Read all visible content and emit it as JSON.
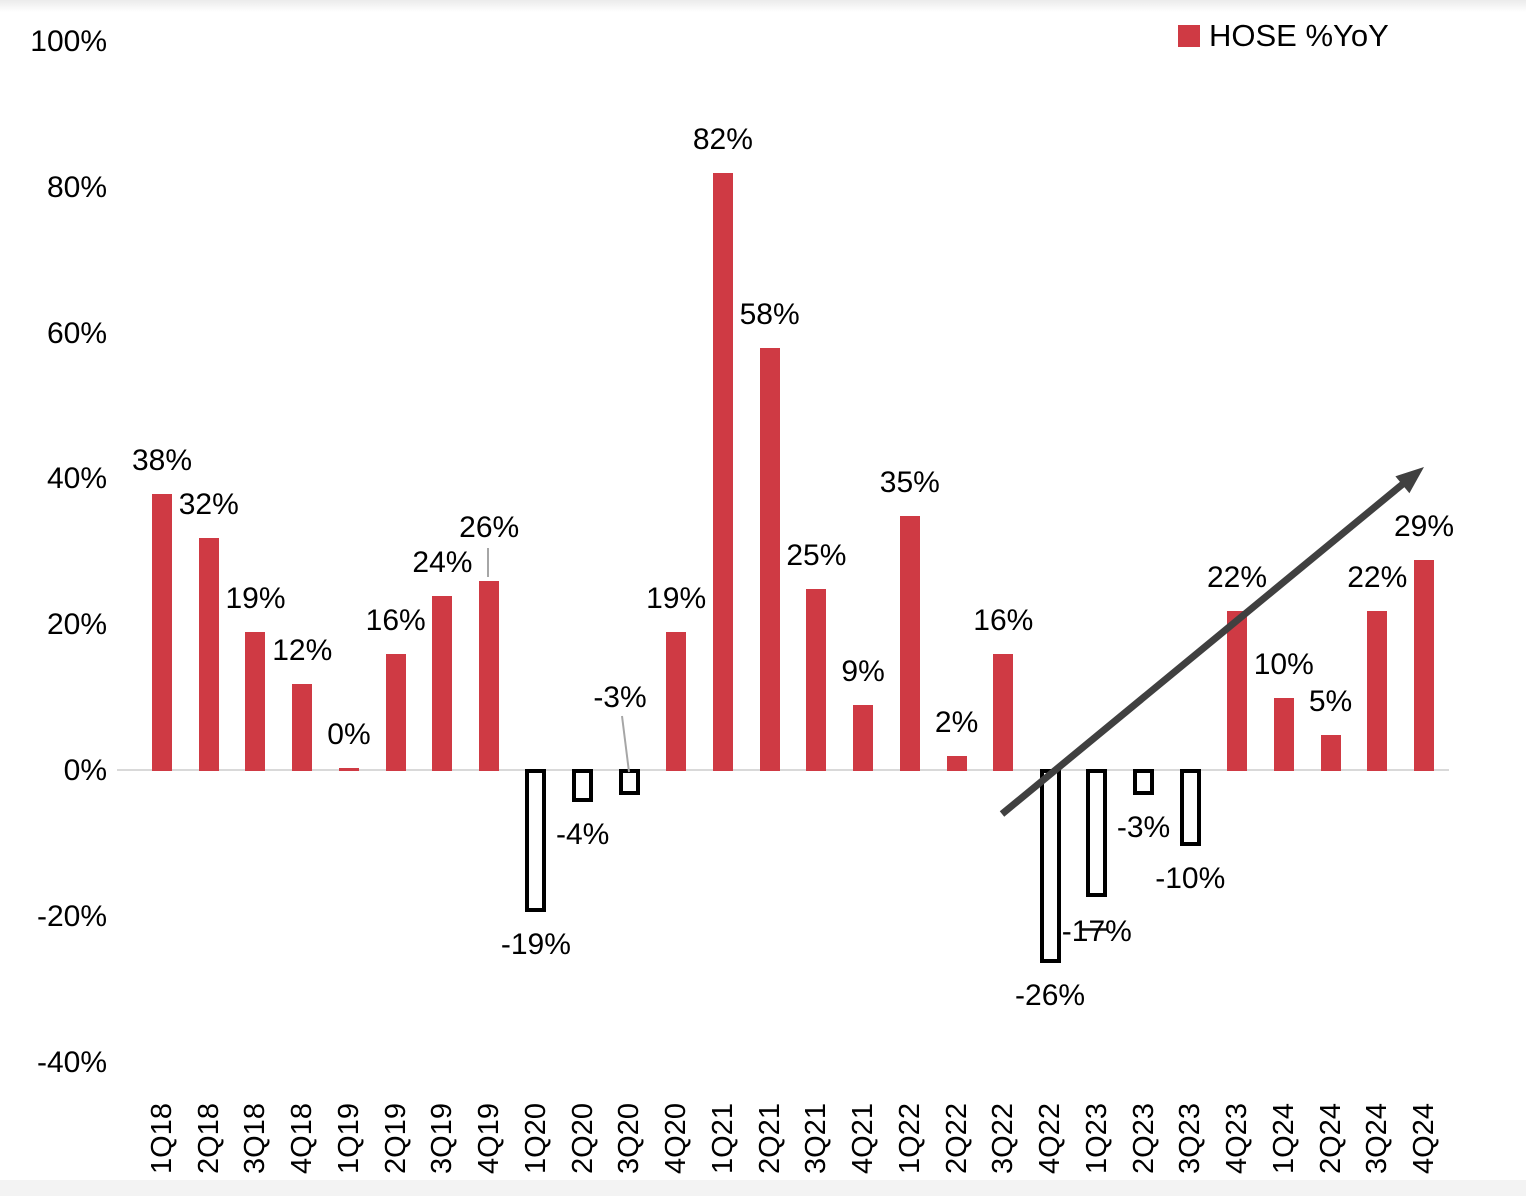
{
  "legend": {
    "label": "HOSE %YoY",
    "swatch_color": "#CF3A44"
  },
  "chart_data": {
    "type": "bar",
    "title": "",
    "xlabel": "",
    "ylabel": "",
    "unit": "%",
    "categories": [
      "1Q18",
      "2Q18",
      "3Q18",
      "4Q18",
      "1Q19",
      "2Q19",
      "3Q19",
      "4Q19",
      "1Q20",
      "2Q20",
      "3Q20",
      "4Q20",
      "1Q21",
      "2Q21",
      "3Q21",
      "4Q21",
      "1Q22",
      "2Q22",
      "3Q22",
      "4Q22",
      "1Q23",
      "2Q23",
      "3Q23",
      "4Q23",
      "1Q24",
      "2Q24",
      "3Q24",
      "4Q24"
    ],
    "series": [
      {
        "name": "HOSE %YoY",
        "values": [
          38,
          32,
          19,
          12,
          0,
          16,
          24,
          26,
          -19,
          -4,
          -3,
          19,
          82,
          58,
          25,
          9,
          35,
          2,
          16,
          -26,
          -17,
          -3,
          -10,
          22,
          10,
          5,
          22,
          29
        ]
      }
    ],
    "data_labels": [
      "38%",
      "32%",
      "19%",
      "12%",
      "0%",
      "16%",
      "24%",
      "26%",
      "-19%",
      "-4%",
      "-3%",
      "19%",
      "82%",
      "58%",
      "25%",
      "9%",
      "35%",
      "2%",
      "16%",
      "-26%",
      "-17%",
      "-3%",
      "-10%",
      "22%",
      "10%",
      "5%",
      "22%",
      "29%"
    ],
    "ylim": [
      -40,
      100
    ],
    "ytick_labels": [
      "100%",
      "80%",
      "60%",
      "40%",
      "20%",
      "0%",
      "-20%",
      "-40%"
    ],
    "ytick_values": [
      100,
      80,
      60,
      40,
      20,
      0,
      -20,
      -40
    ],
    "grid": "off",
    "legend_position": "top-right",
    "positive_bar_color": "#CF3A44",
    "negative_bar_style": {
      "fill": "#FFFFFF",
      "outline": "#000000"
    },
    "axis_line_color": "#D9D9D9",
    "annotations": [
      {
        "type": "trend-arrow",
        "direction": "up-right",
        "color": "#404040"
      }
    ],
    "callout_labels": [
      "26%",
      "-3%",
      "-17%"
    ]
  }
}
